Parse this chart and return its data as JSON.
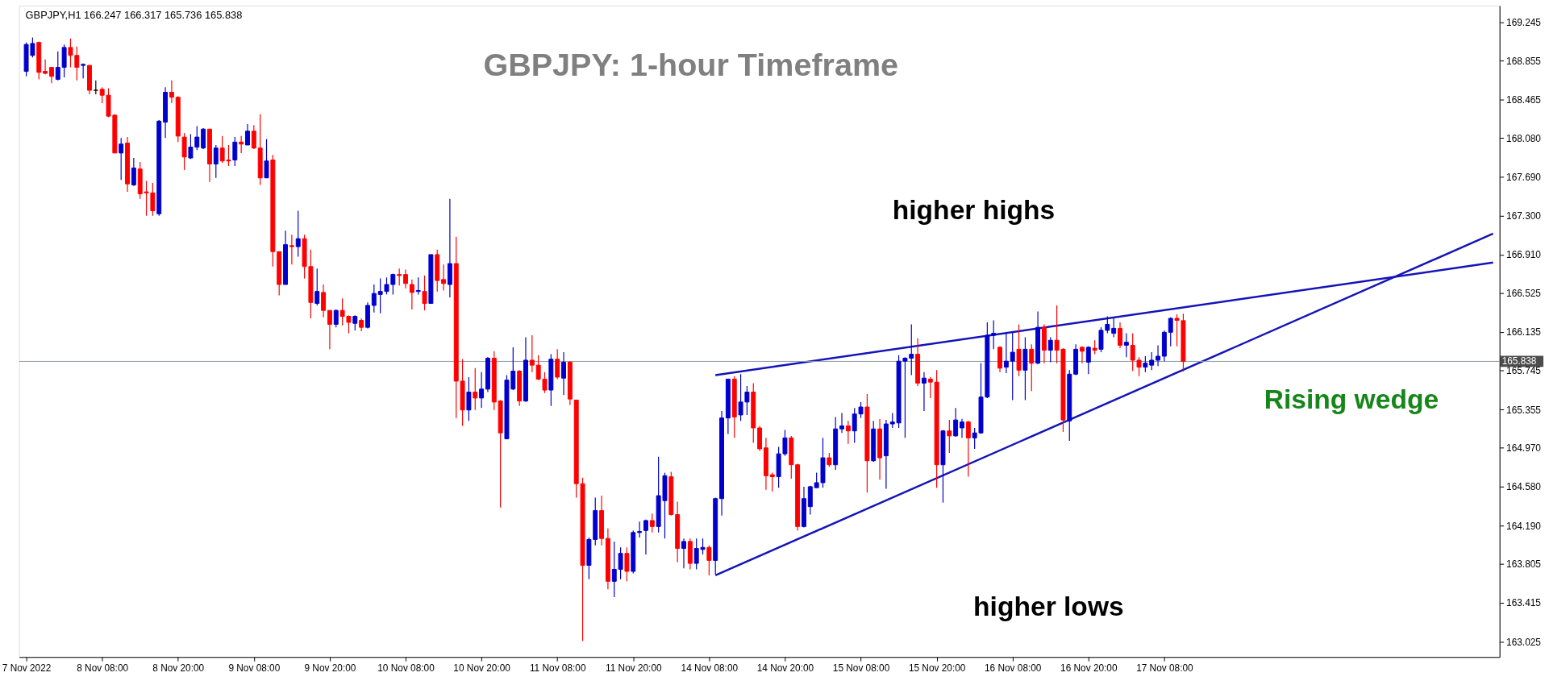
{
  "chart_data": {
    "type": "candlestick",
    "title": "GBPJPY: 1-hour Timeframe",
    "annotations": [
      "GBPJPY,H1  166.247 166.317 165.736 165.838",
      "higher highs",
      "higher lows",
      "Rising wedge"
    ],
    "categories": [
      "7 Nov 2022",
      null,
      null,
      null,
      null,
      null,
      null,
      null,
      null,
      null,
      null,
      null,
      "8 Nov 08:00",
      null,
      null,
      null,
      null,
      null,
      null,
      null,
      null,
      null,
      null,
      null,
      "8 Nov 20:00",
      null,
      null,
      null,
      null,
      null,
      null,
      null,
      null,
      null,
      null,
      null,
      "9 Nov 08:00",
      null,
      null,
      null,
      null,
      null,
      null,
      null,
      null,
      null,
      null,
      null,
      "9 Nov 20:00",
      null,
      null,
      null,
      null,
      null,
      null,
      null,
      null,
      null,
      null,
      null,
      "10 Nov 08:00",
      null,
      null,
      null,
      null,
      null,
      null,
      null,
      null,
      null,
      null,
      null,
      "10 Nov 20:00",
      null,
      null,
      null,
      null,
      null,
      null,
      null,
      null,
      null,
      null,
      null,
      "11 Nov 08:00",
      null,
      null,
      null,
      null,
      null,
      null,
      null,
      null,
      null,
      null,
      null,
      "11 Nov 20:00",
      null,
      null,
      null,
      null,
      null,
      null,
      null,
      null,
      null,
      null,
      null,
      "14 Nov 08:00",
      null,
      null,
      null,
      null,
      null,
      null,
      null,
      null,
      null,
      null,
      null,
      "14 Nov 20:00",
      null,
      null,
      null,
      null,
      null,
      null,
      null,
      null,
      null,
      null,
      null,
      "15 Nov 08:00",
      null,
      null,
      null,
      null,
      null,
      null,
      null,
      null,
      null,
      null,
      null,
      "15 Nov 20:00",
      null,
      null,
      null,
      null,
      null,
      null,
      null,
      null,
      null,
      null,
      null,
      "16 Nov 08:00",
      null,
      null,
      null,
      null,
      null,
      null,
      null,
      null,
      null,
      null,
      null,
      "16 Nov 20:00",
      null,
      null,
      null,
      null,
      null,
      null,
      null,
      null,
      null,
      null,
      null,
      "17 Nov 08:00",
      null,
      null,
      null,
      null,
      null,
      null,
      null,
      null,
      null,
      null,
      null,
      null,
      null,
      null,
      null,
      null,
      null,
      null,
      null,
      null,
      null,
      null,
      null,
      null,
      null,
      null,
      null,
      null,
      null,
      null,
      null,
      null,
      null,
      null,
      null,
      null,
      null,
      null,
      null,
      null,
      null,
      null,
      null,
      null,
      null,
      null,
      null,
      null,
      null,
      null,
      null,
      null
    ],
    "colors": [
      "#0000cd",
      "#0000cd",
      "#ff0000",
      "#ff0000",
      "#ff0000",
      "#0000cd",
      "#0000cd",
      "#ff0000",
      "#ff0000",
      "#0000cd",
      "#ff0000",
      "#000000",
      "#ff0000",
      "#ff0000",
      "#ff0000",
      "#0000cd",
      "#ff0000",
      "#0000cd",
      "#ff0000",
      "#ff0000",
      "#ff0000",
      "#0000cd",
      "#0000cd",
      "#ff0000",
      "#ff0000",
      "#ff0000",
      "#0000cd",
      "#0000cd",
      "#0000cd",
      "#ff0000",
      "#0000cd",
      "#ff0000",
      "#ff0000",
      "#0000cd",
      "#ff0000",
      "#0000cd",
      "#ff0000",
      "#ff0000",
      "#0000cd",
      "#ff0000",
      "#ff0000",
      "#0000cd",
      "#ff0000",
      "#0000cd",
      "#ff0000",
      "#ff0000",
      "#0000cd",
      "#ff0000",
      "#ff0000",
      "#0000cd",
      "#ff0000",
      "#ff0000",
      "#0000cd",
      "#ff0000",
      "#0000cd",
      "#0000cd",
      "#0000cd",
      "#0000cd",
      "#0000cd",
      "#ff0000",
      "#ff0000",
      "#ff0000",
      "#0000cd",
      "#ff0000",
      "#0000cd",
      "#ff0000",
      "#ff0000",
      "#0000cd",
      "#ff0000",
      "#ff0000",
      "#0000cd",
      "#ff0000",
      "#0000cd",
      "#0000cd",
      "#ff0000",
      "#ff0000",
      "#0000cd",
      "#0000cd",
      "#ff0000",
      "#0000cd",
      "#ff0000",
      "#ff0000",
      "#ff0000",
      "#0000cd",
      "#ff0000",
      "#0000cd",
      "#ff0000",
      "#ff0000",
      "#ff0000",
      "#0000cd",
      "#0000cd",
      "#ff0000",
      "#ff0000",
      "#0000cd",
      "#0000cd",
      "#ff0000",
      "#0000cd",
      "#0000cd",
      "#0000cd",
      "#ff0000",
      "#0000cd",
      "#0000cd",
      "#ff0000",
      "#ff0000",
      "#0000cd",
      "#ff0000",
      "#0000cd",
      "#0000cd",
      "#ff0000",
      "#0000cd",
      "#0000cd",
      "#0000cd",
      "#ff0000",
      "#0000cd",
      "#0000cd",
      "#ff0000",
      "#ff0000",
      "#ff0000",
      "#ff0000",
      "#0000cd",
      "#0000cd",
      "#ff0000",
      "#ff0000",
      "#0000cd",
      "#0000cd",
      "#0000cd",
      "#0000cd",
      "#ff0000",
      "#0000cd",
      "#0000cd",
      "#ff0000",
      "#0000cd",
      "#0000cd",
      "#ff0000",
      "#0000cd",
      "#ff0000",
      "#0000cd",
      "#0000cd",
      "#0000cd",
      "#0000cd",
      "#0000cd",
      "#ff0000",
      "#0000cd",
      "#ff0000",
      "#ff0000",
      "#0000cd",
      "#ff0000",
      "#0000cd",
      "#0000cd",
      "#ff0000",
      "#0000cd",
      "#0000cd",
      "#0000cd",
      "#0000cd",
      "#ff0000",
      "#0000cd",
      "#0000cd",
      "#ff0000",
      "#0000cd",
      "#ff0000",
      "#0000cd",
      "#ff0000",
      "#0000cd",
      "#ff0000",
      "#ff0000",
      "#0000cd",
      "#0000cd",
      "#ff0000",
      "#0000cd",
      "#ff0000",
      "#0000cd",
      "#0000cd",
      "#0000cd",
      "#ff0000",
      "#0000cd",
      "#ff0000",
      "#ff0000",
      "#0000cd",
      "#0000cd",
      "#0000cd",
      "#0000cd",
      "#0000cd",
      "#ff0000",
      "#ff0000",
      null,
      null,
      null,
      null,
      null,
      null,
      null,
      null,
      null,
      null,
      null,
      null,
      null,
      null,
      null,
      null,
      null,
      null,
      null,
      null,
      null,
      null,
      null,
      null,
      null,
      null,
      null,
      null,
      null,
      null,
      null,
      null,
      null,
      null,
      null,
      null,
      null,
      null,
      null,
      null,
      null,
      null,
      null,
      null,
      null,
      null,
      null,
      null,
      null
    ],
    "ohlc": [
      [
        168.75,
        169.04,
        168.7,
        169.02
      ],
      [
        168.91,
        169.09,
        168.89,
        169.03
      ],
      [
        169.04,
        169.05,
        168.67,
        168.74
      ],
      [
        168.75,
        168.87,
        168.72,
        168.73
      ],
      [
        168.79,
        168.79,
        168.63,
        168.7
      ],
      [
        168.67,
        168.95,
        168.66,
        168.79
      ],
      [
        168.79,
        169.02,
        168.69,
        168.99
      ],
      [
        168.99,
        169.08,
        168.79,
        168.91
      ],
      [
        168.91,
        169.0,
        168.66,
        168.79
      ],
      [
        168.81,
        168.83,
        168.68,
        168.82
      ],
      [
        168.81,
        168.81,
        168.52,
        168.56
      ],
      [
        168.56,
        168.66,
        168.52,
        168.56
      ],
      [
        168.57,
        168.59,
        168.43,
        168.51
      ],
      [
        168.51,
        168.58,
        168.29,
        168.3
      ],
      [
        168.31,
        168.32,
        167.93,
        167.93
      ],
      [
        167.93,
        168.08,
        167.66,
        168.02
      ],
      [
        168.03,
        168.09,
        167.54,
        167.62
      ],
      [
        167.61,
        167.88,
        167.6,
        167.78
      ],
      [
        167.77,
        167.84,
        167.47,
        167.52
      ],
      [
        167.54,
        167.65,
        167.3,
        167.53
      ],
      [
        167.53,
        167.63,
        167.3,
        167.35
      ],
      [
        167.32,
        168.26,
        167.3,
        168.25
      ],
      [
        168.24,
        168.59,
        168.08,
        168.54
      ],
      [
        168.54,
        168.66,
        168.43,
        168.49
      ],
      [
        168.49,
        168.5,
        168.04,
        168.1
      ],
      [
        168.09,
        168.13,
        167.76,
        167.89
      ],
      [
        167.88,
        168.12,
        167.87,
        167.99
      ],
      [
        167.99,
        168.2,
        167.96,
        168.09
      ],
      [
        167.98,
        168.18,
        167.97,
        168.17
      ],
      [
        168.17,
        168.17,
        167.64,
        167.82
      ],
      [
        167.82,
        168.01,
        167.68,
        167.98
      ],
      [
        167.98,
        168.1,
        167.83,
        167.85
      ],
      [
        167.86,
        168.01,
        167.8,
        167.85
      ],
      [
        167.86,
        168.09,
        167.8,
        168.04
      ],
      [
        168.04,
        168.1,
        167.93,
        168.02
      ],
      [
        168.01,
        168.22,
        168.01,
        168.15
      ],
      [
        168.15,
        168.21,
        167.97,
        167.98
      ],
      [
        167.98,
        168.32,
        167.61,
        167.68
      ],
      [
        167.68,
        168.07,
        167.68,
        167.85
      ],
      [
        167.86,
        167.91,
        166.79,
        166.94
      ],
      [
        166.94,
        166.94,
        166.5,
        166.61
      ],
      [
        166.61,
        167.15,
        166.61,
        167.01
      ],
      [
        167.0,
        167.11,
        166.81,
        166.99
      ],
      [
        166.99,
        167.35,
        166.89,
        167.07
      ],
      [
        167.07,
        167.11,
        166.67,
        166.79
      ],
      [
        166.79,
        166.96,
        166.27,
        166.43
      ],
      [
        166.42,
        166.77,
        166.4,
        166.54
      ],
      [
        166.53,
        166.61,
        166.28,
        166.35
      ],
      [
        166.35,
        166.35,
        165.96,
        166.21
      ],
      [
        166.21,
        166.36,
        166.18,
        166.35
      ],
      [
        166.35,
        166.47,
        166.2,
        166.29
      ],
      [
        166.29,
        166.3,
        166.12,
        166.23
      ],
      [
        166.22,
        166.3,
        166.15,
        166.29
      ],
      [
        166.25,
        166.27,
        166.14,
        166.18
      ],
      [
        166.18,
        166.43,
        166.17,
        166.4
      ],
      [
        166.4,
        166.61,
        166.33,
        166.52
      ],
      [
        166.51,
        166.67,
        166.32,
        166.54
      ],
      [
        166.54,
        166.68,
        166.51,
        166.61
      ],
      [
        166.61,
        166.72,
        166.51,
        166.71
      ],
      [
        166.71,
        166.77,
        166.6,
        166.7
      ],
      [
        166.71,
        166.76,
        166.57,
        166.62
      ],
      [
        166.61,
        166.66,
        166.36,
        166.53
      ],
      [
        166.54,
        166.68,
        166.51,
        166.55
      ],
      [
        166.54,
        166.7,
        166.35,
        166.42
      ],
      [
        166.42,
        166.91,
        166.42,
        166.91
      ],
      [
        166.91,
        166.96,
        166.54,
        166.65
      ],
      [
        166.66,
        166.81,
        166.55,
        166.62
      ],
      [
        166.61,
        167.47,
        166.48,
        166.82
      ],
      [
        166.82,
        167.09,
        165.27,
        165.64
      ],
      [
        165.64,
        165.86,
        165.19,
        165.35
      ],
      [
        165.35,
        165.68,
        165.24,
        165.53
      ],
      [
        165.53,
        165.77,
        165.35,
        165.47
      ],
      [
        165.47,
        165.73,
        165.37,
        165.56
      ],
      [
        165.56,
        165.88,
        165.53,
        165.87
      ],
      [
        165.87,
        165.94,
        165.35,
        165.43
      ],
      [
        165.44,
        165.45,
        164.37,
        165.12
      ],
      [
        165.06,
        165.7,
        165.06,
        165.65
      ],
      [
        165.56,
        165.98,
        165.55,
        165.74
      ],
      [
        165.74,
        165.75,
        165.39,
        165.44
      ],
      [
        165.44,
        166.08,
        165.43,
        165.85
      ],
      [
        165.85,
        166.1,
        165.73,
        165.8
      ],
      [
        165.8,
        165.9,
        165.65,
        165.66
      ],
      [
        165.66,
        165.73,
        165.52,
        165.55
      ],
      [
        165.55,
        165.91,
        165.39,
        165.86
      ],
      [
        165.86,
        165.96,
        165.66,
        165.68
      ],
      [
        165.67,
        165.93,
        165.5,
        165.83
      ],
      [
        165.83,
        165.84,
        165.4,
        165.46
      ],
      [
        165.45,
        165.45,
        164.47,
        164.61
      ],
      [
        164.61,
        164.67,
        163.03,
        163.79
      ],
      [
        163.79,
        164.07,
        163.65,
        164.05
      ],
      [
        164.05,
        164.47,
        163.99,
        164.34
      ],
      [
        164.34,
        164.49,
        163.99,
        164.06
      ],
      [
        164.06,
        164.16,
        163.55,
        163.63
      ],
      [
        163.63,
        164.03,
        163.47,
        163.75
      ],
      [
        163.75,
        163.97,
        163.65,
        163.91
      ],
      [
        163.91,
        163.97,
        163.63,
        163.73
      ],
      [
        163.73,
        164.14,
        163.71,
        164.12
      ],
      [
        164.12,
        164.23,
        164.07,
        164.13
      ],
      [
        164.14,
        164.25,
        163.9,
        164.24
      ],
      [
        164.24,
        164.31,
        164.12,
        164.18
      ],
      [
        164.18,
        164.88,
        164.12,
        164.49
      ],
      [
        164.44,
        164.72,
        164.06,
        164.69
      ],
      [
        164.68,
        164.73,
        164.29,
        164.3
      ],
      [
        164.3,
        164.43,
        163.82,
        163.96
      ],
      [
        163.96,
        164.06,
        163.76,
        164.03
      ],
      [
        164.03,
        164.06,
        163.75,
        163.81
      ],
      [
        163.81,
        164.06,
        163.75,
        163.96
      ],
      [
        163.95,
        164.06,
        163.9,
        163.97
      ],
      [
        163.97,
        163.99,
        163.69,
        163.84
      ],
      [
        163.84,
        164.47,
        163.7,
        164.46
      ],
      [
        164.46,
        165.34,
        164.29,
        165.27
      ],
      [
        165.27,
        165.66,
        165.11,
        165.66
      ],
      [
        165.66,
        165.69,
        165.07,
        165.28
      ],
      [
        165.3,
        165.71,
        165.24,
        165.43
      ],
      [
        165.43,
        165.59,
        165.3,
        165.53
      ],
      [
        165.53,
        165.62,
        165.02,
        165.17
      ],
      [
        165.17,
        165.19,
        164.94,
        164.96
      ],
      [
        164.97,
        165.07,
        164.55,
        164.69
      ],
      [
        164.7,
        164.72,
        164.53,
        164.68
      ],
      [
        164.68,
        164.98,
        164.57,
        164.91
      ],
      [
        164.91,
        165.15,
        164.89,
        165.07
      ],
      [
        165.07,
        165.09,
        164.66,
        164.8
      ],
      [
        164.8,
        164.81,
        164.14,
        164.18
      ],
      [
        164.18,
        164.58,
        164.17,
        164.46
      ],
      [
        164.38,
        164.59,
        164.3,
        164.58
      ],
      [
        164.57,
        164.72,
        164.57,
        164.62
      ],
      [
        164.62,
        165.07,
        164.57,
        164.87
      ],
      [
        164.87,
        164.92,
        164.78,
        164.8
      ],
      [
        164.8,
        165.28,
        164.75,
        165.16
      ],
      [
        165.16,
        165.32,
        165.12,
        165.19
      ],
      [
        165.19,
        165.24,
        165.01,
        165.14
      ],
      [
        165.14,
        165.37,
        165.02,
        165.31
      ],
      [
        165.31,
        165.43,
        165.27,
        165.38
      ],
      [
        165.38,
        165.51,
        164.52,
        164.84
      ],
      [
        164.84,
        165.24,
        164.83,
        165.16
      ],
      [
        165.16,
        165.26,
        164.65,
        164.87
      ],
      [
        164.89,
        165.25,
        164.56,
        165.21
      ],
      [
        165.21,
        165.32,
        165.17,
        165.23
      ],
      [
        165.22,
        165.9,
        165.17,
        165.84
      ],
      [
        165.84,
        165.88,
        165.07,
        165.87
      ],
      [
        165.87,
        166.21,
        165.7,
        165.91
      ],
      [
        165.91,
        166.07,
        165.59,
        165.62
      ],
      [
        165.62,
        165.73,
        165.34,
        165.67
      ],
      [
        165.66,
        165.68,
        165.47,
        165.63
      ],
      [
        165.63,
        165.75,
        164.57,
        164.8
      ],
      [
        164.8,
        165.15,
        164.42,
        165.14
      ],
      [
        165.14,
        165.25,
        164.92,
        165.09
      ],
      [
        165.09,
        165.37,
        165.08,
        165.25
      ],
      [
        165.17,
        165.26,
        165.07,
        165.23
      ],
      [
        165.23,
        165.24,
        164.68,
        165.07
      ],
      [
        165.07,
        165.17,
        164.96,
        165.12
      ],
      [
        165.12,
        165.82,
        165.11,
        165.48
      ],
      [
        165.48,
        166.23,
        165.47,
        166.1
      ],
      [
        166.1,
        166.25,
        165.96,
        166.12
      ],
      [
        165.98,
        165.99,
        165.73,
        165.77
      ],
      [
        165.78,
        166.12,
        165.72,
        165.84
      ],
      [
        165.84,
        166.14,
        165.45,
        165.93
      ],
      [
        165.96,
        166.21,
        165.69,
        165.75
      ],
      [
        165.75,
        166.08,
        165.45,
        165.96
      ],
      [
        165.96,
        166.01,
        165.54,
        165.82
      ],
      [
        165.82,
        166.34,
        165.81,
        166.18
      ],
      [
        166.18,
        166.21,
        165.82,
        165.95
      ],
      [
        165.95,
        166.08,
        165.83,
        166.05
      ],
      [
        166.05,
        166.4,
        165.82,
        165.95
      ],
      [
        165.96,
        165.97,
        165.13,
        165.25
      ],
      [
        165.24,
        165.75,
        165.04,
        165.71
      ],
      [
        165.71,
        166.01,
        165.7,
        165.96
      ],
      [
        165.98,
        165.99,
        165.82,
        165.94
      ],
      [
        165.83,
        165.99,
        165.71,
        165.98
      ],
      [
        165.97,
        166.05,
        165.91,
        165.95
      ],
      [
        165.96,
        166.18,
        165.93,
        166.15
      ],
      [
        166.15,
        166.29,
        166.12,
        166.21
      ],
      [
        166.12,
        166.27,
        166.08,
        166.17
      ],
      [
        166.17,
        166.23,
        165.97,
        166.0
      ],
      [
        166.0,
        166.12,
        165.88,
        166.03
      ],
      [
        166.0,
        166.12,
        165.74,
        165.85
      ],
      [
        165.85,
        165.88,
        165.69,
        165.78
      ],
      [
        165.78,
        165.89,
        165.73,
        165.82
      ],
      [
        165.8,
        165.93,
        165.75,
        165.85
      ],
      [
        165.85,
        166.0,
        165.79,
        165.89
      ],
      [
        165.89,
        166.15,
        165.84,
        166.13
      ],
      [
        166.13,
        166.28,
        165.99,
        166.27
      ],
      [
        166.27,
        166.31,
        165.99,
        166.25
      ],
      [
        166.247,
        166.317,
        165.736,
        165.838
      ],
      null,
      null,
      null,
      null,
      null,
      null,
      null,
      null,
      null,
      null,
      null,
      null,
      null,
      null,
      null,
      null,
      null,
      null,
      null,
      null,
      null,
      null,
      null,
      null,
      null,
      null,
      null,
      null,
      null,
      null,
      null,
      null,
      null,
      null,
      null,
      null,
      null,
      null,
      null,
      null,
      null,
      null,
      null,
      null,
      null,
      null,
      null,
      null,
      null
    ],
    "series": [
      {
        "type": "line",
        "color": "#1414b8",
        "values": [
          null,
          null,
          null,
          null,
          null,
          null,
          null,
          null,
          null,
          null,
          null,
          null,
          null,
          null,
          null,
          null,
          null,
          null,
          null,
          null,
          null,
          null,
          null,
          null,
          null,
          null,
          null,
          null,
          null,
          null,
          null,
          null,
          null,
          null,
          null,
          null,
          null,
          null,
          null,
          null,
          null,
          null,
          null,
          null,
          null,
          null,
          null,
          null,
          null,
          null,
          null,
          null,
          null,
          null,
          null,
          null,
          null,
          null,
          null,
          null,
          null,
          null,
          null,
          null,
          null,
          null,
          null,
          null,
          null,
          null,
          null,
          null,
          null,
          null,
          null,
          null,
          null,
          null,
          null,
          null,
          null,
          null,
          null,
          null,
          null,
          null,
          null,
          null,
          null,
          null,
          null,
          null,
          null,
          null,
          null,
          null,
          null,
          null,
          null,
          null,
          null,
          null,
          null,
          null,
          null,
          null,
          null,
          null,
          null,
          165.7,
          null,
          null,
          null,
          null,
          null,
          null,
          null,
          null,
          null,
          null,
          null,
          null,
          null,
          null,
          null,
          null,
          null,
          null,
          null,
          null,
          null,
          null,
          null,
          null,
          null,
          null,
          null,
          null,
          null,
          null,
          null,
          null,
          null,
          null,
          null,
          null,
          null,
          null,
          null,
          null,
          null,
          null,
          null,
          null,
          null,
          null,
          null,
          null,
          null,
          null,
          null,
          null,
          null,
          null,
          null,
          null,
          null,
          null,
          null,
          null,
          null,
          null,
          null,
          null,
          null,
          null,
          null,
          null,
          null,
          null,
          null,
          null,
          null,
          null,
          null,
          null,
          null,
          null,
          null,
          null,
          null,
          null,
          null,
          null,
          null,
          null,
          null,
          null,
          null,
          null,
          null,
          null,
          null,
          null,
          null,
          null,
          null,
          null,
          null,
          null,
          null,
          null,
          null,
          null,
          null,
          null,
          null,
          null,
          null,
          null,
          null,
          null,
          null,
          null,
          null,
          null,
          null,
          null,
          null,
          null,
          null,
          null,
          166.83
        ]
      },
      {
        "type": "line",
        "color": "#1414b8",
        "values": [
          null,
          null,
          null,
          null,
          null,
          null,
          null,
          null,
          null,
          null,
          null,
          null,
          null,
          null,
          null,
          null,
          null,
          null,
          null,
          null,
          null,
          null,
          null,
          null,
          null,
          null,
          null,
          null,
          null,
          null,
          null,
          null,
          null,
          null,
          null,
          null,
          null,
          null,
          null,
          null,
          null,
          null,
          null,
          null,
          null,
          null,
          null,
          null,
          null,
          null,
          null,
          null,
          null,
          null,
          null,
          null,
          null,
          null,
          null,
          null,
          null,
          null,
          null,
          null,
          null,
          null,
          null,
          null,
          null,
          null,
          null,
          null,
          null,
          null,
          null,
          null,
          null,
          null,
          null,
          null,
          null,
          null,
          null,
          null,
          null,
          null,
          null,
          null,
          null,
          null,
          null,
          null,
          null,
          null,
          null,
          null,
          null,
          null,
          null,
          null,
          null,
          null,
          null,
          null,
          null,
          null,
          null,
          null,
          null,
          163.69,
          null,
          null,
          null,
          null,
          null,
          null,
          null,
          null,
          null,
          null,
          null,
          null,
          null,
          null,
          null,
          null,
          null,
          null,
          null,
          null,
          null,
          null,
          null,
          null,
          null,
          null,
          null,
          null,
          null,
          null,
          null,
          null,
          null,
          null,
          null,
          null,
          null,
          null,
          null,
          null,
          null,
          null,
          null,
          null,
          null,
          null,
          null,
          null,
          null,
          null,
          null,
          null,
          null,
          null,
          null,
          null,
          null,
          null,
          null,
          null,
          null,
          null,
          null,
          null,
          null,
          null,
          null,
          null,
          null,
          null,
          null,
          null,
          null,
          null,
          null,
          null,
          null,
          null,
          null,
          null,
          null,
          null,
          null,
          null,
          null,
          null,
          null,
          null,
          null,
          null,
          null,
          null,
          null,
          null,
          null,
          null,
          null,
          null,
          null,
          null,
          null,
          null,
          null,
          null,
          null,
          null,
          null,
          null,
          null,
          null,
          null,
          null,
          null,
          null,
          null,
          null,
          null,
          null,
          null,
          null,
          null,
          null,
          167.12
        ]
      }
    ],
    "ref_lines": [
      {
        "axis": "y",
        "value": 165.838,
        "label": "165.838",
        "color": "#8a9aaa"
      }
    ],
    "ylim": [
      162.87,
      169.41
    ],
    "yticks": [
      169.245,
      168.855,
      168.465,
      {
        "value": 168.08,
        "label": "168.080"
      },
      {
        "value": 167.69,
        "label": "167.690"
      },
      {
        "value": 167.3,
        "label": "167.300"
      },
      {
        "value": 166.91,
        "label": "166.910"
      },
      166.525,
      166.135,
      165.745,
      165.355,
      {
        "value": 164.97,
        "label": "164.970"
      },
      {
        "value": 164.58,
        "label": "164.580"
      },
      {
        "value": 164.19,
        "label": "164.190"
      },
      163.805,
      163.415,
      163.025
    ]
  }
}
